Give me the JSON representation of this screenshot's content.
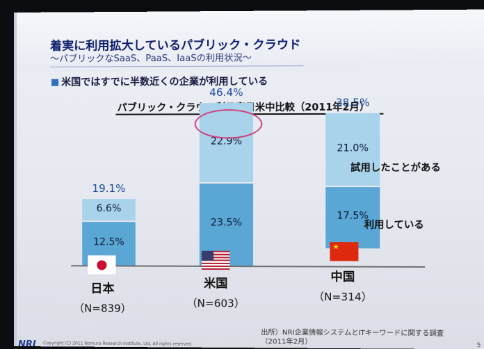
{
  "slide": {
    "title": "着実に利用拡大しているパブリック・クラウド",
    "subtitle": "～パブリックなSaaS、PaaS、IaaSの利用状況～",
    "bullet": "米国ではすでに半数近くの企業が利用している",
    "source_line1": "出所）NRI企業情報システムとITキーワードに関する調査",
    "source_line2": "（2011年2月）",
    "footer_logo": "NRI",
    "footer_copyright": "Copyright (C) 2011 Nomura Research Institute, Ltd. All rights reserved.",
    "page_number": "5"
  },
  "chart_data": {
    "type": "bar",
    "stacked": true,
    "title": "パブリック・クラウド利用率日米中比較（2011年2月）",
    "categories": [
      "日本",
      "米国",
      "中国"
    ],
    "sample_sizes": [
      "（N=839）",
      "（N=603）",
      "（N=314）"
    ],
    "series": [
      {
        "name": "利用している",
        "values": [
          12.5,
          23.5,
          17.5
        ],
        "labels": [
          "12.5%",
          "23.5%",
          "17.5%"
        ],
        "color": "#5aa6d4"
      },
      {
        "name": "試用したことがある",
        "values": [
          6.6,
          22.9,
          21.0
        ],
        "labels": [
          "6.6%",
          "22.9%",
          "21.0%"
        ],
        "color": "#a9d3ea"
      }
    ],
    "totals": [
      19.1,
      46.4,
      38.5
    ],
    "total_labels": [
      "19.1%",
      "46.4%",
      "38.5%"
    ],
    "highlighted_category": "米国",
    "flags": [
      "japan-flag",
      "usa-flag",
      "china-flag"
    ],
    "ylim": [
      0,
      50
    ]
  }
}
